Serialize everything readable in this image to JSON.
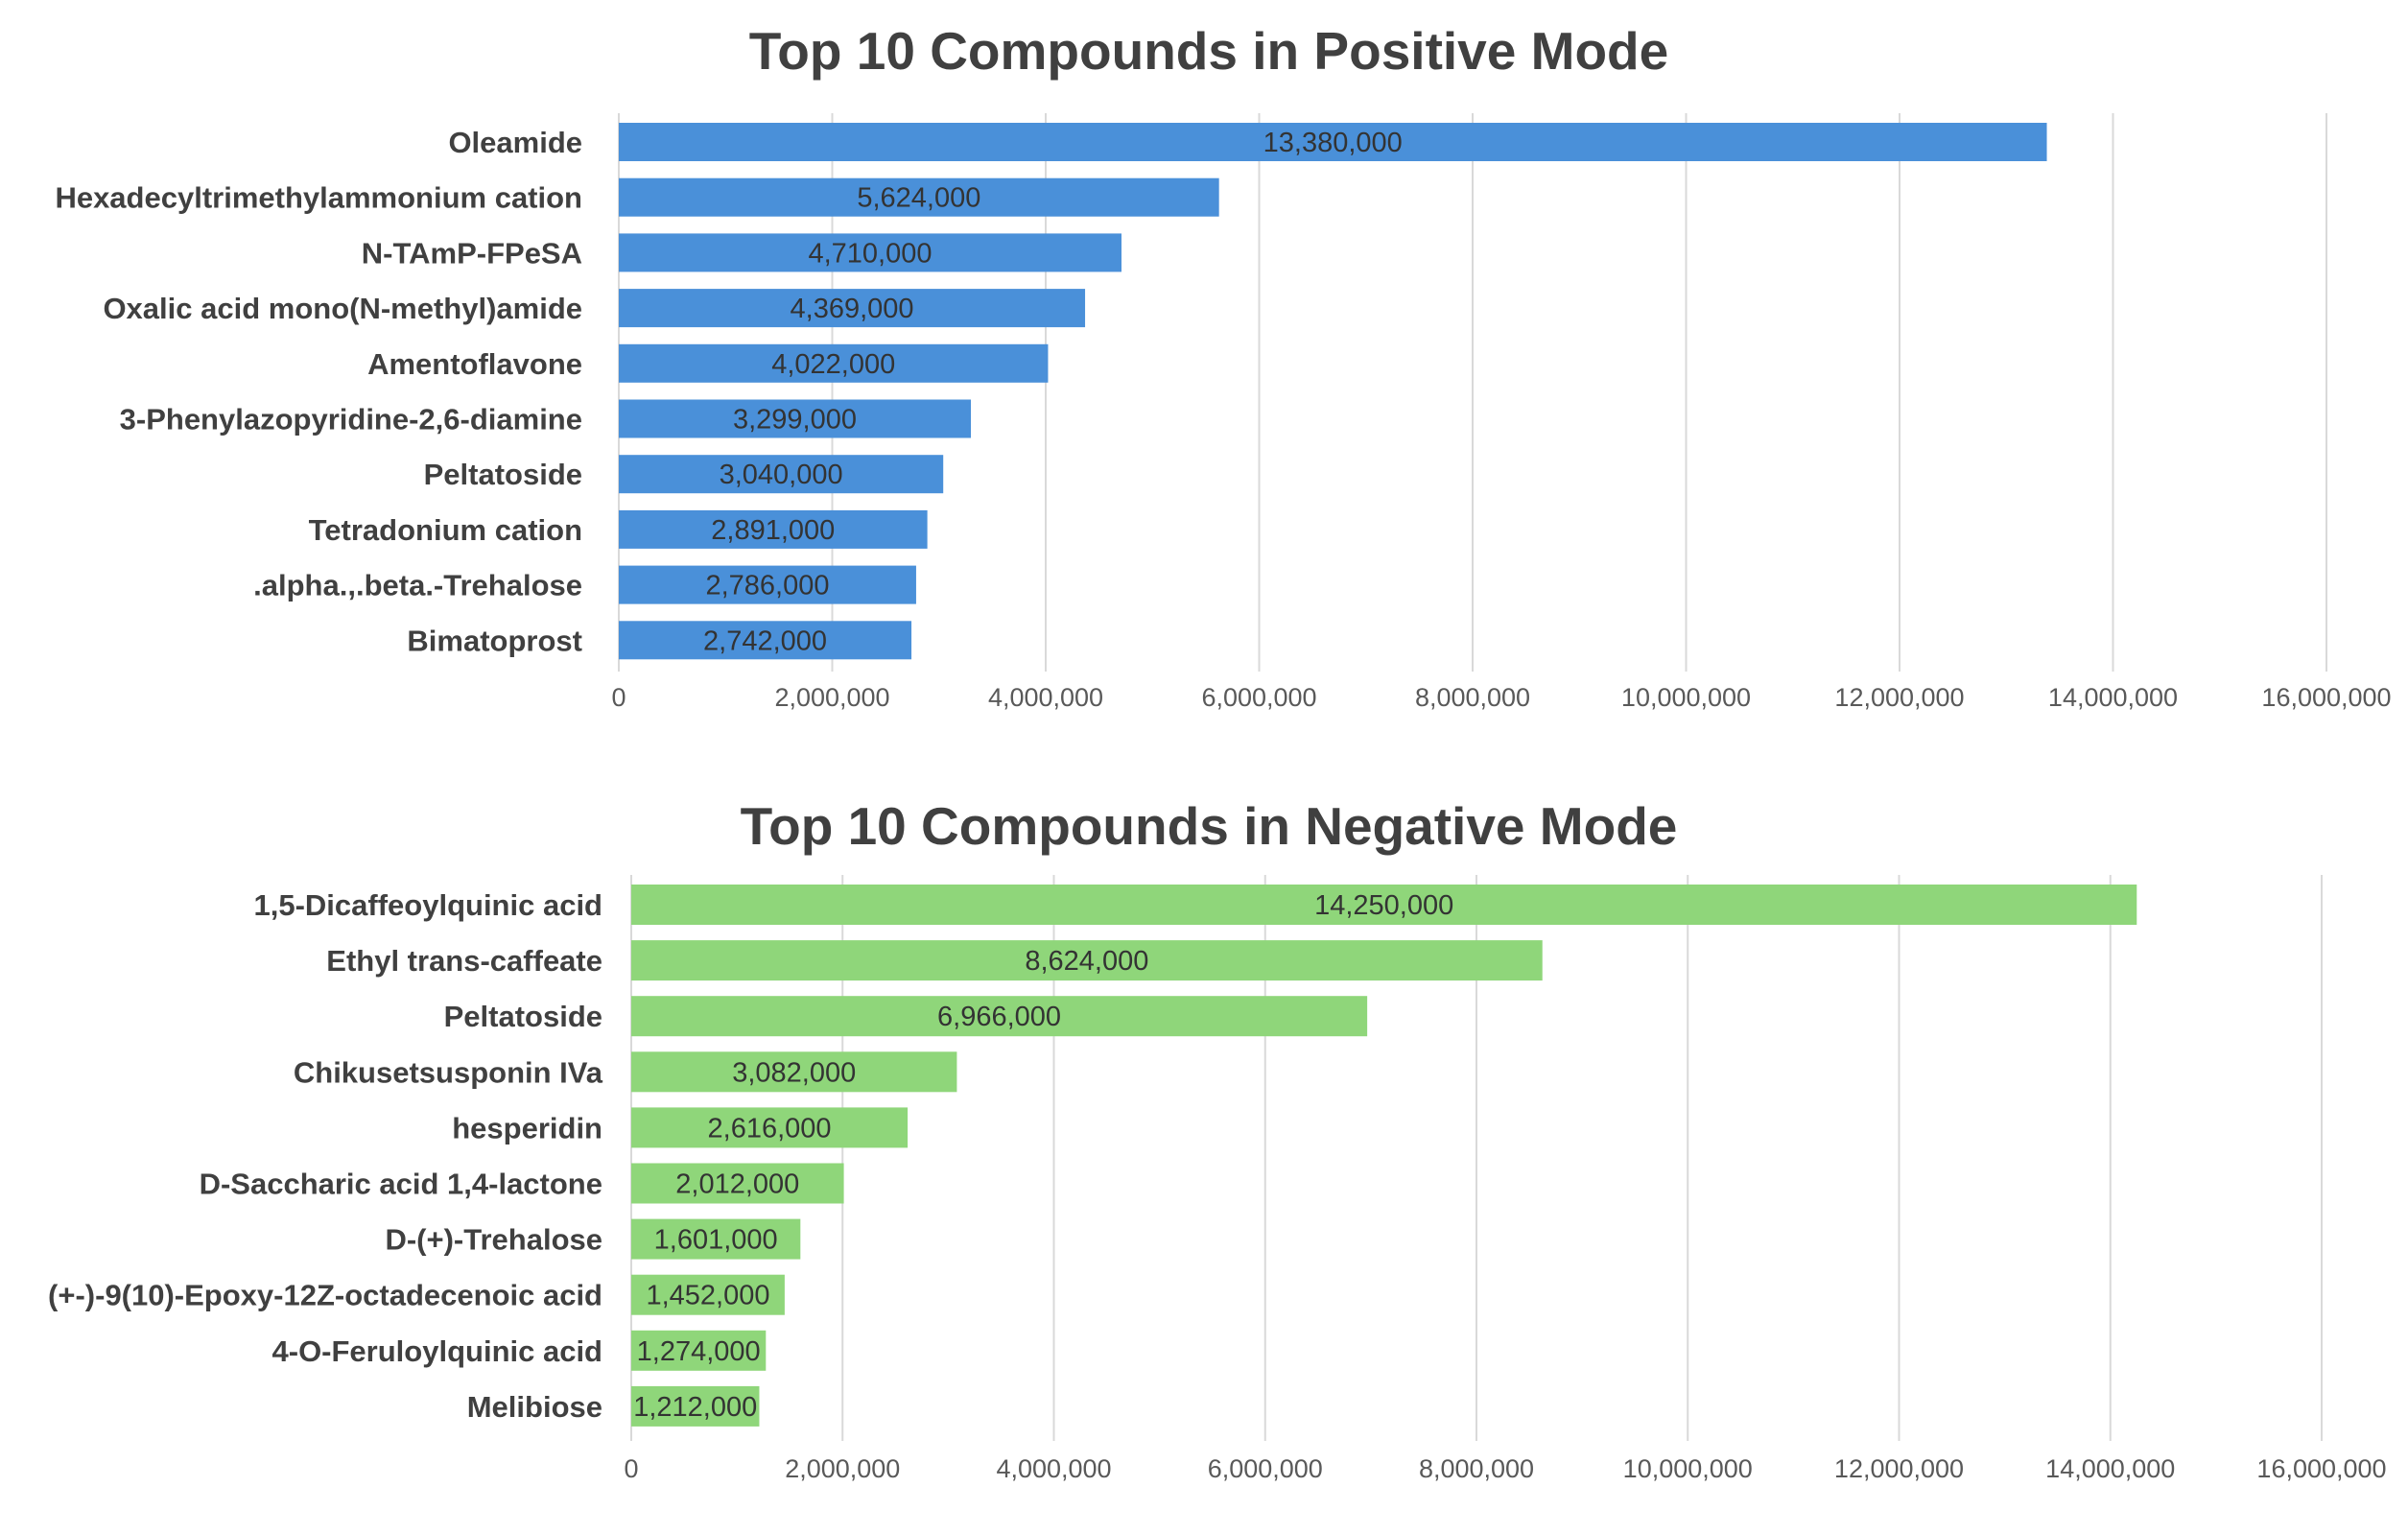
{
  "chart_data": [
    {
      "type": "bar",
      "orientation": "horizontal",
      "title": "Top 10 Compounds in Positive Mode",
      "categories": [
        "Oleamide",
        "Hexadecyltrimethylammonium cation",
        "N-TAmP-FPeSA",
        "Oxalic acid mono(N-methyl)amide",
        "Amentoflavone",
        "3-Phenylazopyridine-2,6-diamine",
        "Peltatoside",
        "Tetradonium cation",
        ".alpha.,.beta.-Trehalose",
        "Bimatoprost"
      ],
      "values": [
        13380000,
        5624000,
        4710000,
        4369000,
        4022000,
        3299000,
        3040000,
        2891000,
        2786000,
        2742000
      ],
      "value_labels": [
        "13,380,000",
        "5,624,000",
        "4,710,000",
        "4,369,000",
        "4,022,000",
        "3,299,000",
        "3,040,000",
        "2,891,000",
        "2,786,000",
        "2,742,000"
      ],
      "xlim": [
        0,
        16000000
      ],
      "ticks": [
        0,
        2000000,
        4000000,
        6000000,
        8000000,
        10000000,
        12000000,
        14000000,
        16000000
      ],
      "tick_labels": [
        "0",
        "2,000,000",
        "4,000,000",
        "6,000,000",
        "8,000,000",
        "10,000,000",
        "12,000,000",
        "14,000,000",
        "16,000,000"
      ],
      "bar_color": "#4a90d9",
      "grid": true,
      "xlabel": "",
      "ylabel": ""
    },
    {
      "type": "bar",
      "orientation": "horizontal",
      "title": "Top 10 Compounds in Negative Mode",
      "categories": [
        "1,5-Dicaffeoylquinic acid",
        "Ethyl trans-caffeate",
        "Peltatoside",
        "Chikusetsusponin IVa",
        "hesperidin",
        "D-Saccharic acid 1,4-lactone",
        "D-(+)-Trehalose",
        "(+-)-9(10)-Epoxy-12Z-octadecenoic acid",
        "4-O-Feruloylquinic acid",
        "Melibiose"
      ],
      "values": [
        14250000,
        8624000,
        6966000,
        3082000,
        2616000,
        2012000,
        1601000,
        1452000,
        1274000,
        1212000
      ],
      "value_labels": [
        "14,250,000",
        "8,624,000",
        "6,966,000",
        "3,082,000",
        "2,616,000",
        "2,012,000",
        "1,601,000",
        "1,452,000",
        "1,274,000",
        "1,212,000"
      ],
      "xlim": [
        0,
        16000000
      ],
      "ticks": [
        0,
        2000000,
        4000000,
        6000000,
        8000000,
        10000000,
        12000000,
        14000000,
        16000000
      ],
      "tick_labels": [
        "0",
        "2,000,000",
        "4,000,000",
        "6,000,000",
        "8,000,000",
        "10,000,000",
        "12,000,000",
        "14,000,000",
        "16,000,000"
      ],
      "bar_color": "#8fd67a",
      "grid": true,
      "xlabel": "",
      "ylabel": ""
    }
  ]
}
